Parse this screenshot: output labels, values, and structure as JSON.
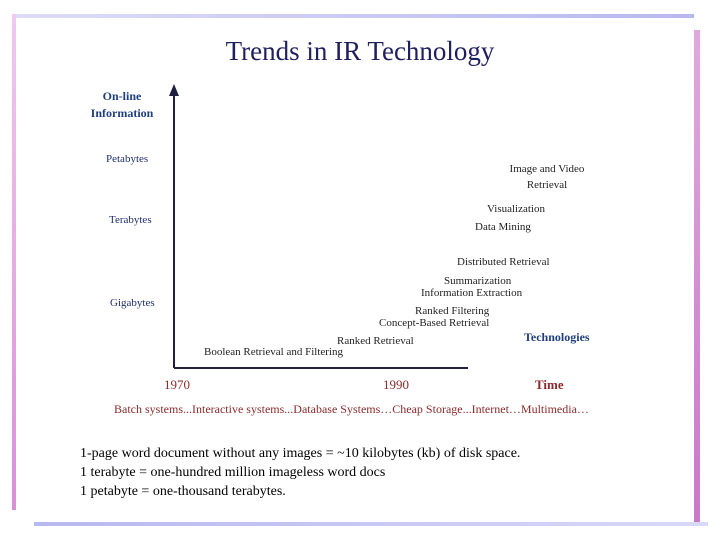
{
  "slide": {
    "title": "Trends in IR Technology",
    "y_axis_title_line1": "On-line",
    "y_axis_title_line2": "Information",
    "y_labels": [
      "Petabytes",
      "Terabytes",
      "Gigabytes"
    ],
    "x_labels": [
      "1970",
      "1990"
    ],
    "x_axis_title": "Time",
    "technologies_header": "Technologies",
    "technologies": {
      "image_video_1": "Image and Video",
      "image_video_2": "Retrieval",
      "visualization": "Visualization",
      "data_mining": "Data Mining",
      "distributed": "Distributed Retrieval",
      "summarization": "Summarization",
      "info_extraction": "Information Extraction",
      "ranked_filtering": "Ranked Filtering",
      "concept_based": "Concept-Based Retrieval",
      "ranked_retrieval": "Ranked Retrieval",
      "boolean": "Boolean Retrieval and Filtering"
    },
    "systems_timeline": "Batch systems...Interactive systems...Database Systems…Cheap Storage...Internet…Multimedia…",
    "notes": [
      "1-page word document without any images = ~10 kilobytes (kb) of disk space.",
      "1 terabyte = one-hundred million imageless word docs",
      "1 petabyte =  one-thousand terabytes."
    ],
    "colors": {
      "title": "#1f1f5f",
      "axis_title": "#1f3f7f",
      "year_text": "#8a2a2a",
      "frame_blue": "#b8b8f0",
      "frame_pink": "#d890d8"
    }
  }
}
